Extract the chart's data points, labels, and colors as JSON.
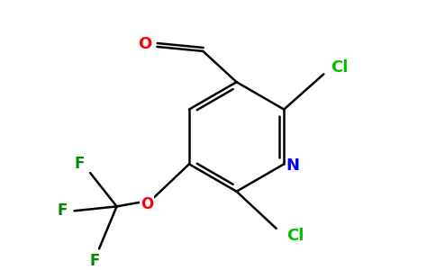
{
  "background_color": "#ffffff",
  "bond_color": "#000000",
  "atom_colors": {
    "Cl": "#00bb00",
    "N": "#0000ff",
    "O": "#ff0000",
    "F": "#008800",
    "C": "#000000"
  },
  "figsize": [
    4.84,
    3.0
  ],
  "dpi": 100,
  "lw": 1.8,
  "fontsize": 13
}
